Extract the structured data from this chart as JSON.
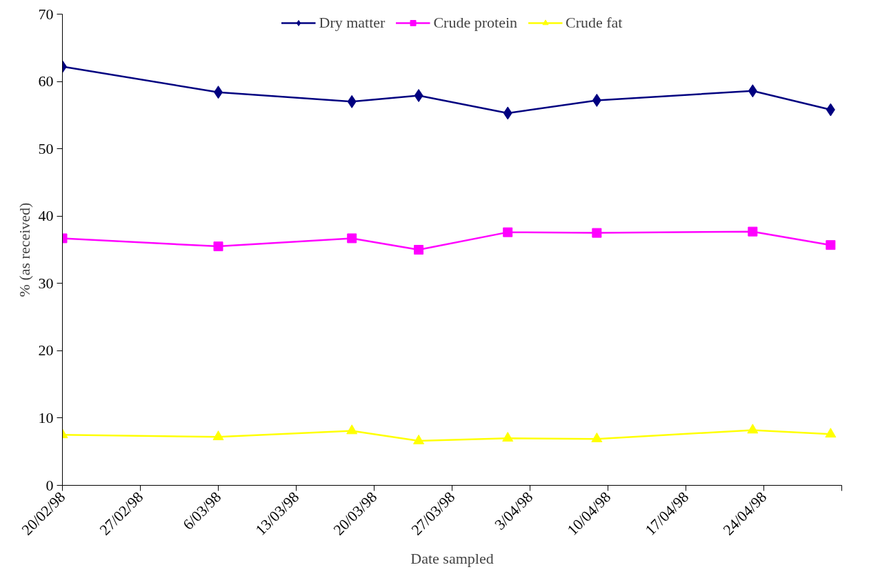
{
  "chart_data": {
    "type": "line",
    "xlabel": "Date sampled",
    "ylabel": "% (as received)",
    "x": [
      "1998-02-20",
      "1998-03-06",
      "1998-03-18",
      "1998-03-24",
      "1998-04-01",
      "1998-04-09",
      "1998-04-23",
      "1998-04-30"
    ],
    "series": [
      {
        "name": "Dry matter",
        "color": "#000080",
        "marker": "diamond",
        "values": [
          62.2,
          58.4,
          57.0,
          57.9,
          55.3,
          57.2,
          58.6,
          55.8
        ]
      },
      {
        "name": "Crude protein",
        "color": "#ff00ff",
        "marker": "square",
        "values": [
          36.7,
          35.5,
          36.7,
          35.0,
          37.6,
          37.5,
          37.7,
          35.7
        ]
      },
      {
        "name": "Crude fat",
        "color": "#ffff00",
        "marker": "triangle",
        "values": [
          7.5,
          7.2,
          8.1,
          6.6,
          7.0,
          6.9,
          8.2,
          7.6
        ]
      }
    ],
    "xlim": [
      "1998-02-20",
      "1998-05-01"
    ],
    "xticks": [
      {
        "value": "1998-02-20",
        "label": "20/02/98"
      },
      {
        "value": "1998-02-27",
        "label": "27/02/98"
      },
      {
        "value": "1998-03-06",
        "label": "6/03/98"
      },
      {
        "value": "1998-03-13",
        "label": "13/03/98"
      },
      {
        "value": "1998-03-20",
        "label": "20/03/98"
      },
      {
        "value": "1998-03-27",
        "label": "27/03/98"
      },
      {
        "value": "1998-04-03",
        "label": "3/04/98"
      },
      {
        "value": "1998-04-10",
        "label": "10/04/98"
      },
      {
        "value": "1998-04-17",
        "label": "17/04/98"
      },
      {
        "value": "1998-04-24",
        "label": "24/04/98"
      },
      {
        "value": "1998-05-01",
        "label": null
      }
    ],
    "ylim": [
      0,
      70
    ],
    "yticks": [
      0,
      10,
      20,
      30,
      40,
      50,
      60,
      70
    ],
    "grid": false,
    "legend": "top",
    "line_style": "solid"
  }
}
